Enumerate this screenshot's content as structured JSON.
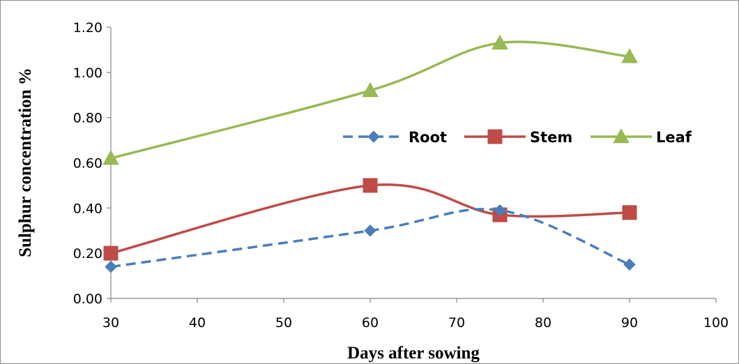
{
  "chart_data": {
    "type": "line",
    "title": "",
    "xlabel": "Days after sowing",
    "ylabel": "Sulphur concentration %",
    "x": [
      30,
      60,
      75,
      90
    ],
    "series": [
      {
        "name": "Root",
        "values": [
          0.14,
          0.3,
          0.39,
          0.15
        ],
        "color": "#4a7ebb",
        "marker": "diamond",
        "dash": true
      },
      {
        "name": "Stem",
        "values": [
          0.2,
          0.5,
          0.37,
          0.38
        ],
        "color": "#be4b48",
        "marker": "square",
        "dash": false
      },
      {
        "name": "Leaf",
        "values": [
          0.62,
          0.92,
          1.13,
          1.07
        ],
        "color": "#98b954",
        "marker": "triangle",
        "dash": false
      }
    ],
    "xlim": [
      30,
      100
    ],
    "ylim": [
      0,
      1.2
    ],
    "xticks": [
      "30",
      "40",
      "50",
      "60",
      "70",
      "80",
      "90",
      "100"
    ],
    "yticks": [
      "0.00",
      "0.20",
      "0.40",
      "0.60",
      "0.80",
      "1.00",
      "1.20"
    ],
    "grid": false,
    "smooth": true,
    "legend": "center-right"
  }
}
